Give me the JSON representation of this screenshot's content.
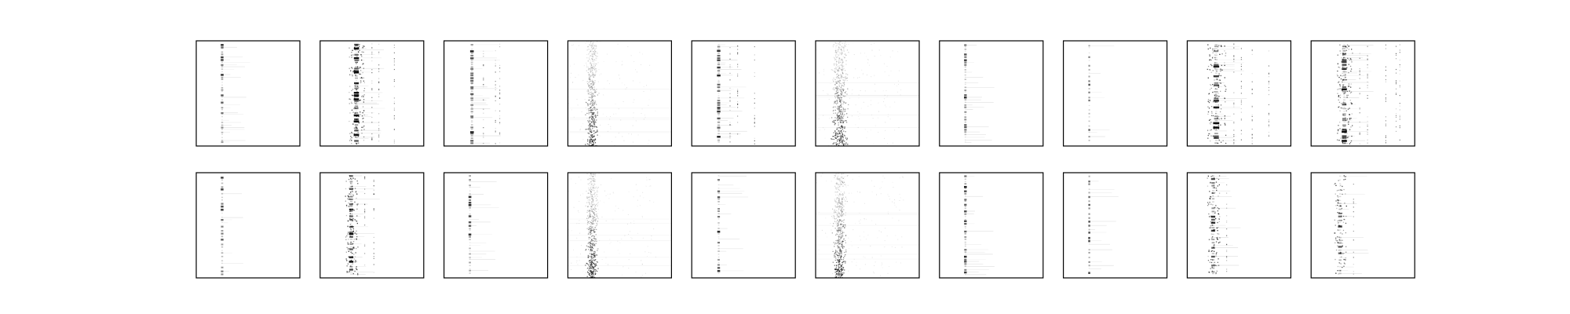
{
  "figure": {
    "background": "#ffffff",
    "frame_color": "#000000",
    "ink_color": "#000000"
  },
  "chart_data": {
    "type": "heatmap",
    "rows": 2,
    "cols": 10,
    "title": "",
    "xlabel": "",
    "ylabel": "",
    "ticks": false,
    "grid": false,
    "colormap": "grey",
    "panels": [
      {
        "row": 0,
        "col": 0,
        "style": "spike",
        "column_center": 0.25,
        "spread": 0.02,
        "band_count": 40,
        "density": 0.3,
        "extra_columns": 0
      },
      {
        "row": 0,
        "col": 1,
        "style": "cluster",
        "column_center": 0.35,
        "spread": 0.05,
        "band_count": 50,
        "density": 0.6,
        "extra_columns": 3
      },
      {
        "row": 0,
        "col": 2,
        "style": "spike",
        "column_center": 0.27,
        "spread": 0.03,
        "band_count": 45,
        "density": 0.4,
        "extra_columns": 3
      },
      {
        "row": 0,
        "col": 3,
        "style": "noise",
        "column_center": 0.23,
        "spread": 0.06,
        "band_count": 60,
        "density": 0.55,
        "extra_columns": 0
      },
      {
        "row": 0,
        "col": 4,
        "style": "spike",
        "column_center": 0.26,
        "spread": 0.03,
        "band_count": 45,
        "density": 0.45,
        "extra_columns": 3
      },
      {
        "row": 0,
        "col": 5,
        "style": "noise",
        "column_center": 0.23,
        "spread": 0.08,
        "band_count": 60,
        "density": 0.65,
        "extra_columns": 0
      },
      {
        "row": 0,
        "col": 6,
        "style": "spike",
        "column_center": 0.25,
        "spread": 0.02,
        "band_count": 40,
        "density": 0.35,
        "extra_columns": 0
      },
      {
        "row": 0,
        "col": 7,
        "style": "spike",
        "column_center": 0.25,
        "spread": 0.01,
        "band_count": 25,
        "density": 0.25,
        "extra_columns": 0
      },
      {
        "row": 0,
        "col": 8,
        "style": "cluster",
        "column_center": 0.28,
        "spread": 0.06,
        "band_count": 45,
        "density": 0.55,
        "extra_columns": 4
      },
      {
        "row": 0,
        "col": 9,
        "style": "cluster",
        "column_center": 0.32,
        "spread": 0.05,
        "band_count": 45,
        "density": 0.5,
        "extra_columns": 5
      },
      {
        "row": 1,
        "col": 0,
        "style": "spike",
        "column_center": 0.25,
        "spread": 0.02,
        "band_count": 30,
        "density": 0.3,
        "extra_columns": 0
      },
      {
        "row": 1,
        "col": 1,
        "style": "cluster",
        "column_center": 0.3,
        "spread": 0.04,
        "band_count": 40,
        "density": 0.5,
        "extra_columns": 2
      },
      {
        "row": 1,
        "col": 2,
        "style": "spike",
        "column_center": 0.25,
        "spread": 0.02,
        "band_count": 35,
        "density": 0.35,
        "extra_columns": 0
      },
      {
        "row": 1,
        "col": 3,
        "style": "noise",
        "column_center": 0.23,
        "spread": 0.06,
        "band_count": 60,
        "density": 0.6,
        "extra_columns": 0
      },
      {
        "row": 1,
        "col": 4,
        "style": "spike",
        "column_center": 0.26,
        "spread": 0.02,
        "band_count": 35,
        "density": 0.35,
        "extra_columns": 0
      },
      {
        "row": 1,
        "col": 5,
        "style": "noise",
        "column_center": 0.23,
        "spread": 0.07,
        "band_count": 60,
        "density": 0.6,
        "extra_columns": 0
      },
      {
        "row": 1,
        "col": 6,
        "style": "spike",
        "column_center": 0.25,
        "spread": 0.02,
        "band_count": 40,
        "density": 0.4,
        "extra_columns": 0
      },
      {
        "row": 1,
        "col": 7,
        "style": "spike",
        "column_center": 0.25,
        "spread": 0.01,
        "band_count": 25,
        "density": 0.25,
        "extra_columns": 0
      },
      {
        "row": 1,
        "col": 8,
        "style": "cluster",
        "column_center": 0.25,
        "spread": 0.04,
        "band_count": 35,
        "density": 0.45,
        "extra_columns": 1
      },
      {
        "row": 1,
        "col": 9,
        "style": "cluster",
        "column_center": 0.28,
        "spread": 0.04,
        "band_count": 30,
        "density": 0.35,
        "extra_columns": 1
      }
    ]
  }
}
